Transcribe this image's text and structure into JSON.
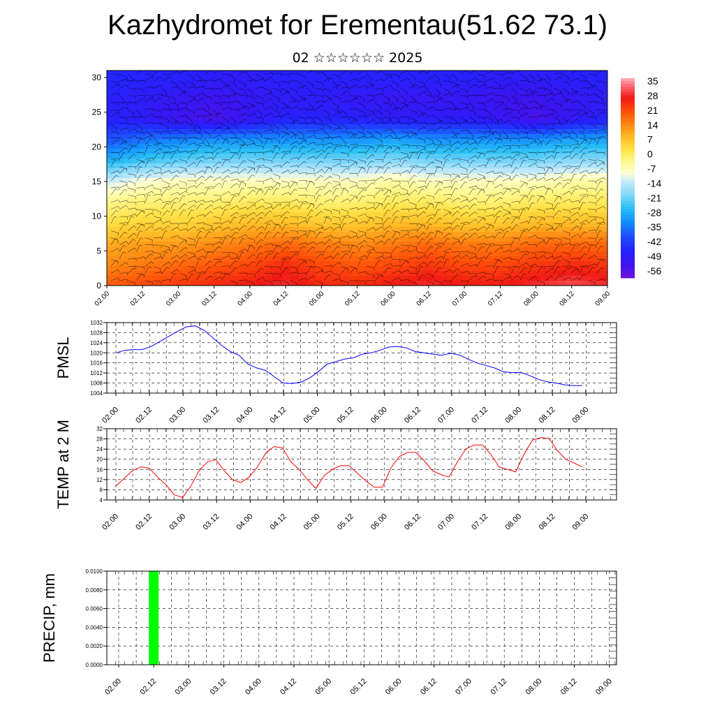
{
  "header": {
    "title": "Kazhydromet for Erementau(51.62 73.1)",
    "subtitle": "02 ☆☆☆☆☆☆ 2025"
  },
  "chart_data": [
    {
      "type": "heatmap",
      "title": "",
      "xlabel": "",
      "ylabel": "",
      "x_tick_labels": [
        "02.00",
        "02.12",
        "03.00",
        "03.12",
        "04.00",
        "04.12",
        "05.00",
        "05.12",
        "06.00",
        "06.12",
        "07.00",
        "07.12",
        "08.00",
        "08.12",
        "09.00"
      ],
      "y_ticks": [
        0,
        5,
        10,
        15,
        20,
        25,
        30
      ],
      "ylim": [
        0,
        31
      ],
      "colorbar": {
        "labels": [
          35,
          28,
          21,
          14,
          7,
          0,
          -7,
          -14,
          -21,
          -28,
          -35,
          -42,
          -49,
          -56
        ],
        "range": [
          -63,
          38
        ],
        "colors": {
          "high": "#ff1a1a",
          "mid": "#ffe84a",
          "cold": "#30b4f0",
          "coldest": "#6a10e0"
        }
      },
      "overlay": "wind barbs",
      "temperature_field_c": {
        "levels_km": [
          0,
          3,
          6,
          9,
          12,
          15,
          18,
          21,
          24,
          27,
          30
        ],
        "times": [
          "02.00",
          "02.12",
          "03.00",
          "03.12",
          "04.00",
          "04.12",
          "05.00",
          "05.12",
          "06.00",
          "06.12",
          "07.00",
          "07.12",
          "08.00",
          "08.12",
          "09.00"
        ],
        "rows": [
          [
            20,
            22,
            24,
            26,
            28,
            30,
            26,
            26,
            28,
            30,
            28,
            28,
            30,
            32,
            30
          ],
          [
            14,
            16,
            18,
            20,
            22,
            26,
            22,
            20,
            22,
            24,
            22,
            22,
            24,
            26,
            24
          ],
          [
            10,
            12,
            12,
            14,
            16,
            18,
            16,
            14,
            16,
            18,
            16,
            16,
            18,
            18,
            18
          ],
          [
            2,
            4,
            4,
            6,
            8,
            8,
            6,
            6,
            8,
            8,
            6,
            6,
            8,
            8,
            8
          ],
          [
            -4,
            -2,
            -2,
            -2,
            0,
            0,
            -2,
            -2,
            0,
            0,
            -2,
            -2,
            0,
            0,
            0
          ],
          [
            -14,
            -10,
            -8,
            -8,
            -8,
            -8,
            -8,
            -8,
            -6,
            -8,
            -8,
            -8,
            -8,
            -6,
            -6
          ],
          [
            -30,
            -26,
            -24,
            -22,
            -22,
            -22,
            -22,
            -22,
            -20,
            -22,
            -22,
            -22,
            -22,
            -20,
            -20
          ],
          [
            -42,
            -38,
            -36,
            -34,
            -34,
            -34,
            -34,
            -34,
            -32,
            -34,
            -34,
            -34,
            -34,
            -32,
            -32
          ],
          [
            -50,
            -52,
            -56,
            -58,
            -54,
            -50,
            -50,
            -50,
            -52,
            -52,
            -52,
            -54,
            -58,
            -54,
            -50
          ],
          [
            -50,
            -52,
            -54,
            -56,
            -54,
            -52,
            -52,
            -54,
            -54,
            -54,
            -54,
            -56,
            -56,
            -54,
            -52
          ],
          [
            -48,
            -50,
            -50,
            -52,
            -52,
            -50,
            -50,
            -50,
            -50,
            -50,
            -50,
            -52,
            -52,
            -50,
            -50
          ]
        ]
      }
    },
    {
      "type": "line",
      "ylabel": "PMSL",
      "ylim": [
        1004,
        1032
      ],
      "y_ticks": [
        1004,
        1008,
        1012,
        1016,
        1020,
        1024,
        1028,
        1032
      ],
      "x_tick_labels": [
        "02.00",
        "02.12",
        "03.00",
        "03.12",
        "04.00",
        "04.12",
        "05.00",
        "05.12",
        "06.00",
        "06.12",
        "07.00",
        "07.12",
        "08.00",
        "08.12",
        "09.00"
      ],
      "grid": true,
      "series": [
        {
          "color": "#0000ff",
          "values": [
            1020,
            1021,
            1021.3,
            1021.3,
            1022.5,
            1024.5,
            1026.5,
            1028.5,
            1030.3,
            1030.7,
            1029,
            1026,
            1023,
            1020.5,
            1019,
            1015.5,
            1014,
            1013,
            1010.5,
            1008,
            1007.8,
            1008.3,
            1010,
            1012.5,
            1015.5,
            1016.5,
            1017.5,
            1018,
            1019.5,
            1020,
            1021,
            1022.3,
            1022.5,
            1022,
            1020.5,
            1020,
            1019.5,
            1019,
            1019.8,
            1019.2,
            1017.5,
            1016,
            1015,
            1014,
            1012.5,
            1012.1,
            1012.3,
            1011,
            1009.5,
            1008.5,
            1008,
            1007.3,
            1007,
            1007
          ]
        }
      ]
    },
    {
      "type": "line",
      "ylabel": "TEMP at 2 M",
      "ylim": [
        4,
        32
      ],
      "y_ticks": [
        4,
        8,
        12,
        16,
        20,
        24,
        28,
        32
      ],
      "x_tick_labels": [
        "02.00",
        "02.12",
        "03.00",
        "03.12",
        "04.00",
        "04.12",
        "05.00",
        "05.12",
        "06.00",
        "06.12",
        "07.00",
        "07.12",
        "08.00",
        "08.12",
        "09.00"
      ],
      "grid": true,
      "series": [
        {
          "color": "#ff0000",
          "values": [
            9.5,
            12.5,
            15.5,
            17,
            16.5,
            13,
            10,
            6,
            5,
            9.5,
            15.5,
            19,
            19.8,
            15.5,
            12,
            10.8,
            13,
            17,
            22.5,
            25,
            24.5,
            19,
            16,
            12,
            8.5,
            13.5,
            16,
            17.5,
            17.5,
            14.5,
            11.5,
            9,
            9,
            16.5,
            21,
            22.7,
            22.7,
            19.5,
            15.5,
            14,
            13,
            19,
            24,
            25.6,
            25.6,
            22,
            17,
            16,
            15,
            22,
            27.5,
            28.5,
            28.2,
            23.5,
            20,
            18.5,
            17
          ]
        }
      ]
    },
    {
      "type": "bar",
      "ylabel": "PRECIP, mm",
      "ylim": [
        0,
        0.01
      ],
      "y_tick_labels": [
        "0.0000",
        "0.0020",
        "0.0040",
        "0.0060",
        "0.0080",
        "0.0100"
      ],
      "x_tick_labels": [
        "02.00",
        "02.12",
        "03.00",
        "03.12",
        "04.00",
        "04.12",
        "05.00",
        "05.12",
        "06.00",
        "06.12",
        "07.00",
        "07.12",
        "08.00",
        "08.12",
        "09.00"
      ],
      "grid": true,
      "bars": [
        {
          "x": "02.12",
          "value": 0.01,
          "color": "#00ff00"
        }
      ]
    }
  ]
}
